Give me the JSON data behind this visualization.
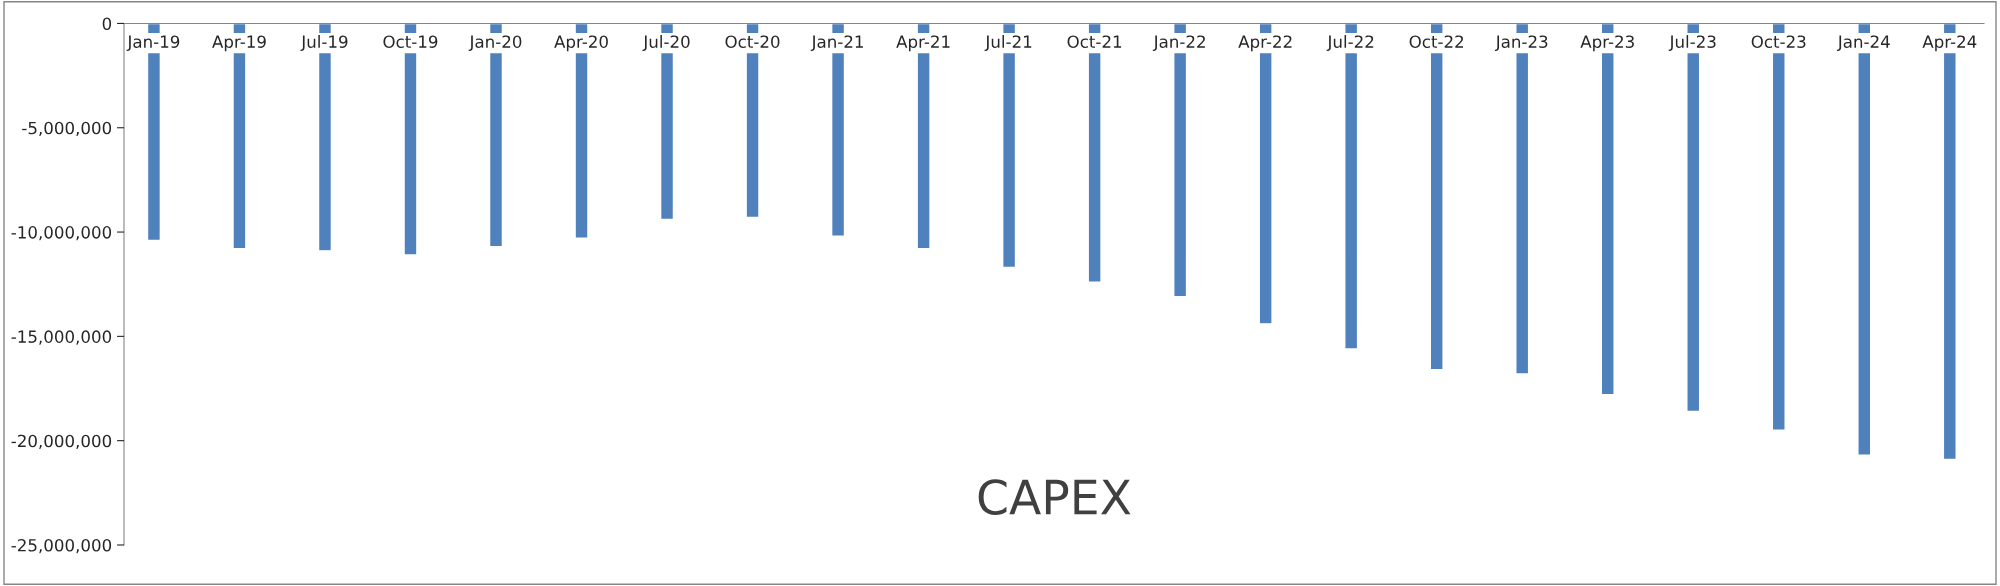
{
  "chart_data": {
    "type": "bar",
    "title": "CAPEX",
    "categories": [
      "Jan-19",
      "Apr-19",
      "Jul-19",
      "Oct-19",
      "Jan-20",
      "Apr-20",
      "Jul-20",
      "Oct-20",
      "Jan-21",
      "Apr-21",
      "Jul-21",
      "Oct-21",
      "Jan-22",
      "Apr-22",
      "Jul-22",
      "Oct-22",
      "Jan-23",
      "Apr-23",
      "Jul-23",
      "Oct-23",
      "Jan-24",
      "Apr-24"
    ],
    "values": [
      -10400000,
      -10800000,
      -10900000,
      -11100000,
      -10700000,
      -10300000,
      -9400000,
      -9300000,
      -10200000,
      -10800000,
      -11700000,
      -12400000,
      -13100000,
      -14400000,
      -15600000,
      -16600000,
      -16800000,
      -17800000,
      -18600000,
      -19500000,
      -20700000,
      -20900000
    ],
    "color": "#4f81bd",
    "ylim": [
      -25000000,
      0
    ],
    "yticks": [
      {
        "value": 0,
        "label": "0"
      },
      {
        "value": -5000000,
        "label": "-5,000,000"
      },
      {
        "value": -10000000,
        "label": "-10,000,000"
      },
      {
        "value": -15000000,
        "label": "-15,000,000"
      },
      {
        "value": -20000000,
        "label": "-20,000,000"
      },
      {
        "value": -25000000,
        "label": "-25,000,000"
      }
    ],
    "grid": false,
    "legend": false
  }
}
